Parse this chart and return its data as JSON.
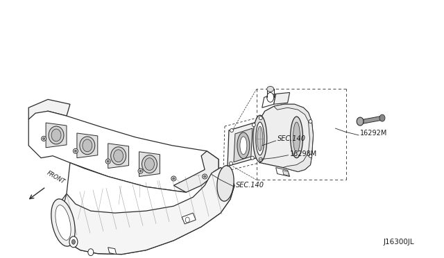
{
  "background_color": "#ffffff",
  "line_color": "#2a2a2a",
  "label_color": "#1a1a1a",
  "labels": {
    "sec140_upper": "SEC.140",
    "sec140_right": "SEC.140",
    "part16298": "16298M",
    "part16292": "16292M",
    "diagram_id": "J16300JL",
    "front": "FRONT"
  },
  "figsize": [
    6.4,
    3.72
  ],
  "dpi": 100
}
